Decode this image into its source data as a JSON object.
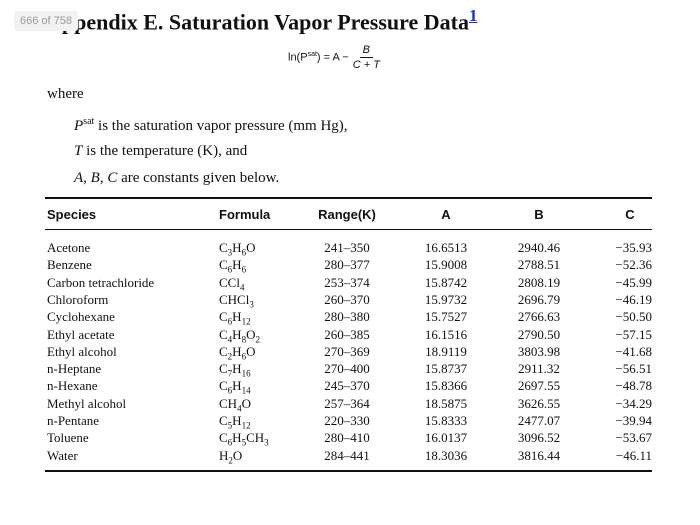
{
  "page_badge": "666 of 758",
  "header": {
    "title": "Appendix E. Saturation Vapor Pressure Data",
    "footnote_marker": "1"
  },
  "equation": {
    "lhs_start": "ln(P",
    "lhs_sup": "sat",
    "lhs_end": ") = A −",
    "numerator": "B",
    "denominator": "C + T"
  },
  "where": {
    "intro": "where",
    "lines": [
      {
        "symbol": "P",
        "sup": "sat",
        "text": " is the saturation vapor pressure (mm Hg),"
      },
      {
        "symbol": "T",
        "text": " is the temperature (K), and"
      },
      {
        "symbol": "A, B, C",
        "text": " are constants given below."
      }
    ]
  },
  "table": {
    "headers": [
      "Species",
      "Formula",
      "Range(K)",
      "A",
      "B",
      "C"
    ],
    "rows": [
      [
        "Acetone",
        "C3H6O",
        "241–350",
        "16.6513",
        "2940.46",
        "−35.93"
      ],
      [
        "Benzene",
        "C6H6",
        "280–377",
        "15.9008",
        "2788.51",
        "−52.36"
      ],
      [
        "Carbon tetrachloride",
        "CCl4",
        "253–374",
        "15.8742",
        "2808.19",
        "−45.99"
      ],
      [
        "Chloroform",
        "CHCl3",
        "260–370",
        "15.9732",
        "2696.79",
        "−46.19"
      ],
      [
        "Cyclohexane",
        "C6H12",
        "280–380",
        "15.7527",
        "2766.63",
        "−50.50"
      ],
      [
        "Ethyl acetate",
        "C4H8O2",
        "260–385",
        "16.1516",
        "2790.50",
        "−57.15"
      ],
      [
        "Ethyl alcohol",
        "C2H6O",
        "270–369",
        "18.9119",
        "3803.98",
        "−41.68"
      ],
      [
        "n-Heptane",
        "C7H16",
        "270–400",
        "15.8737",
        "2911.32",
        "−56.51"
      ],
      [
        "n-Hexane",
        "C6H14",
        "245–370",
        "15.8366",
        "2697.55",
        "−48.78"
      ],
      [
        "Methyl alcohol",
        "CH4O",
        "257–364",
        "18.5875",
        "3626.55",
        "−34.29"
      ],
      [
        "n-Pentane",
        "C5H12",
        "220–330",
        "15.8333",
        "2477.07",
        "−39.94"
      ],
      [
        "Toluene",
        "C6H5CH3",
        "280–410",
        "16.0137",
        "3096.52",
        "−53.67"
      ],
      [
        "Water",
        "H2O",
        "284–441",
        "18.3036",
        "3816.44",
        "−46.11"
      ]
    ]
  }
}
